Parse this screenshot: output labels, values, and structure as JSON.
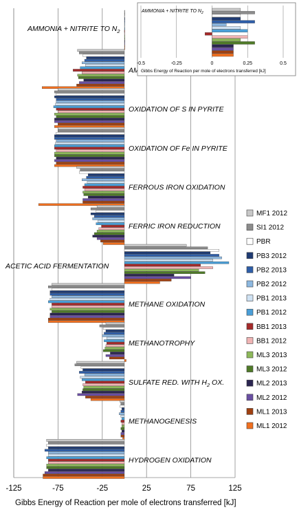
{
  "chart_data": [
    {
      "type": "bar",
      "orientation": "horizontal",
      "title": "",
      "xlabel": "Gibbs Energy of Reaction per mole of electrons transferred [kJ]",
      "ylabel": "",
      "xlim": [
        -125,
        125
      ],
      "x_ticks": [
        "-125",
        "-75",
        "-25",
        "25",
        "75",
        "125"
      ],
      "x_tick_values": [
        -125,
        -75,
        -25,
        25,
        75,
        125
      ],
      "grid": "vertical",
      "legend_position": "right",
      "categories": [
        "AMMONIA + NITRITE TO N₂",
        "AMMONIA TO NITRITE",
        "OXIDATION OF S IN PYRITE",
        "OXIDATION OF Fe IN PYRITE",
        "FERROUS IRON OXIDATION",
        "FERRIC IRON REDUCTION",
        "ACETIC ACID FERMENTATION",
        "METHANE OXIDATION",
        "METHANOTROPHY",
        "SULFATE RED. WITH H₂ OX.",
        "METHANOGENESIS",
        "HYDROGEN OXIDATION"
      ],
      "series": [
        {
          "name": "MF1 2012",
          "color": "#c8c8c8",
          "values": [
            0.2,
            -53,
            -75,
            -75,
            -54,
            -31,
            70,
            -82,
            -21,
            -54,
            -5,
            -88
          ]
        },
        {
          "name": "SI1 2012",
          "color": "#8c8c8c",
          "values": [
            0.3,
            -51,
            -79,
            -75,
            -50,
            -38,
            94,
            -86,
            -28,
            -56,
            -4,
            -86
          ]
        },
        {
          "name": "PBR",
          "color": "#ffffff",
          "values": [
            0.2,
            -47,
            -77,
            -77,
            -51,
            -32,
            107,
            -82,
            -24,
            -49,
            -5,
            -88
          ]
        },
        {
          "name": "PB3 2012",
          "color": "#1f3b73",
          "values": [
            0.2,
            -43,
            -79,
            -79,
            -41,
            -38,
            97,
            -84,
            -21,
            -47,
            -3,
            -86
          ]
        },
        {
          "name": "PB2 2013",
          "color": "#2e5ea8",
          "values": [
            0.3,
            -45,
            -77,
            -79,
            -43,
            -34,
            107,
            -84,
            -23,
            -51,
            -4,
            -90
          ]
        },
        {
          "name": "PB2 2012",
          "color": "#8db8e0",
          "values": [
            0.1,
            -48,
            -77,
            -77,
            -48,
            -36,
            110,
            -82,
            -25,
            -45,
            -6,
            -86
          ]
        },
        {
          "name": "PB1 2013",
          "color": "#cfe2f3",
          "values": [
            0.2,
            -44,
            -78,
            -78,
            -42,
            -30,
            100,
            -84,
            -20,
            -50,
            -4,
            -86
          ]
        },
        {
          "name": "PB1 2012",
          "color": "#4a9fd8",
          "values": [
            0.25,
            -50,
            -80,
            -79,
            -45,
            -32,
            118,
            -86,
            -23,
            -48,
            -3,
            -88
          ]
        },
        {
          "name": "BB1 2013",
          "color": "#a52a2a",
          "values": [
            -0.05,
            -58,
            -77,
            -79,
            -47,
            -26,
            86,
            -82,
            -20,
            -44,
            -4,
            -86
          ]
        },
        {
          "name": "BB1 2012",
          "color": "#f0b4b4",
          "values": [
            0.25,
            -48,
            -75,
            -77,
            -45,
            -29,
            100,
            -82,
            -21,
            -47,
            -3,
            -86
          ]
        },
        {
          "name": "ML3 2013",
          "color": "#8db85a",
          "values": [
            0.2,
            -53,
            -79,
            -79,
            -47,
            -31,
            84,
            -84,
            -22,
            -46,
            -3,
            -88
          ]
        },
        {
          "name": "ML3 2012",
          "color": "#4f7a28",
          "values": [
            0.3,
            -52,
            -77,
            -79,
            -46,
            -34,
            91,
            -82,
            -24,
            -47,
            -4,
            -88
          ]
        },
        {
          "name": "ML2 2013",
          "color": "#2a2550",
          "values": [
            0.15,
            -46,
            -79,
            -77,
            -41,
            -36,
            56,
            -84,
            -16,
            -48,
            -3,
            -86
          ]
        },
        {
          "name": "ML2 2012",
          "color": "#6a4fa3",
          "values": [
            0.15,
            -51,
            -79,
            -79,
            -47,
            -31,
            75,
            -84,
            -21,
            -53,
            -4,
            -90
          ]
        },
        {
          "name": "ML1 2013",
          "color": "#a04010",
          "values": [
            0.15,
            -54,
            -75,
            -77,
            -47,
            -27,
            53,
            -86,
            -17,
            -44,
            -4,
            -92
          ]
        },
        {
          "name": "ML1 2012",
          "color": "#f07020",
          "values": [
            0.15,
            -93,
            -79,
            -79,
            -97,
            -24,
            40,
            -86,
            2,
            -38,
            -2,
            -92
          ]
        }
      ]
    },
    {
      "type": "bar",
      "orientation": "horizontal",
      "title": "AMMONIA + NITRITE TO N₂",
      "xlabel": "Gibbs Energy of Reaction per mole of electrons transferred [kJ]",
      "xlim": [
        -0.5,
        0.5
      ],
      "x_ticks": [
        "-0.5",
        "-0.25",
        "0",
        "0.25",
        "0.5"
      ],
      "x_tick_values": [
        -0.5,
        -0.25,
        0,
        0.25,
        0.5
      ],
      "grid": "vertical",
      "series_ref": "same as main chart, AMMONIA + NITRITE TO N₂ values"
    }
  ],
  "main": {
    "category_labels": [
      "AMMONIA + NITRITE TO N",
      "AMMONIA TO NITRITE",
      "OXIDATION OF S IN PYRITE",
      "OXIDATION OF Fe IN PYRITE",
      "FERROUS IRON OXIDATION",
      "FERRIC IRON REDUCTION",
      "ACETIC ACID FERMENTATION",
      "METHANE OXIDATION",
      "METHANOTROPHY",
      "SULFATE RED. WITH H",
      "METHANOGENESIS",
      "HYDROGEN OXIDATION"
    ],
    "category_subscripts": [
      "2",
      "",
      "",
      "",
      "",
      "",
      "",
      "",
      "",
      "2",
      "",
      ""
    ],
    "category_suffixes": [
      "",
      "",
      "",
      "",
      "",
      "",
      "",
      "",
      "",
      " OX.",
      "",
      ""
    ],
    "xlabel": "Gibbs Energy of Reaction per mole of electrons transferred [kJ]"
  },
  "inset": {
    "title": "AMMONIA + NITRITE TO N",
    "title_subscript": "2",
    "xlabel": "Gibbs Energy of Reaction per mole of electrons transferred [kJ]"
  }
}
